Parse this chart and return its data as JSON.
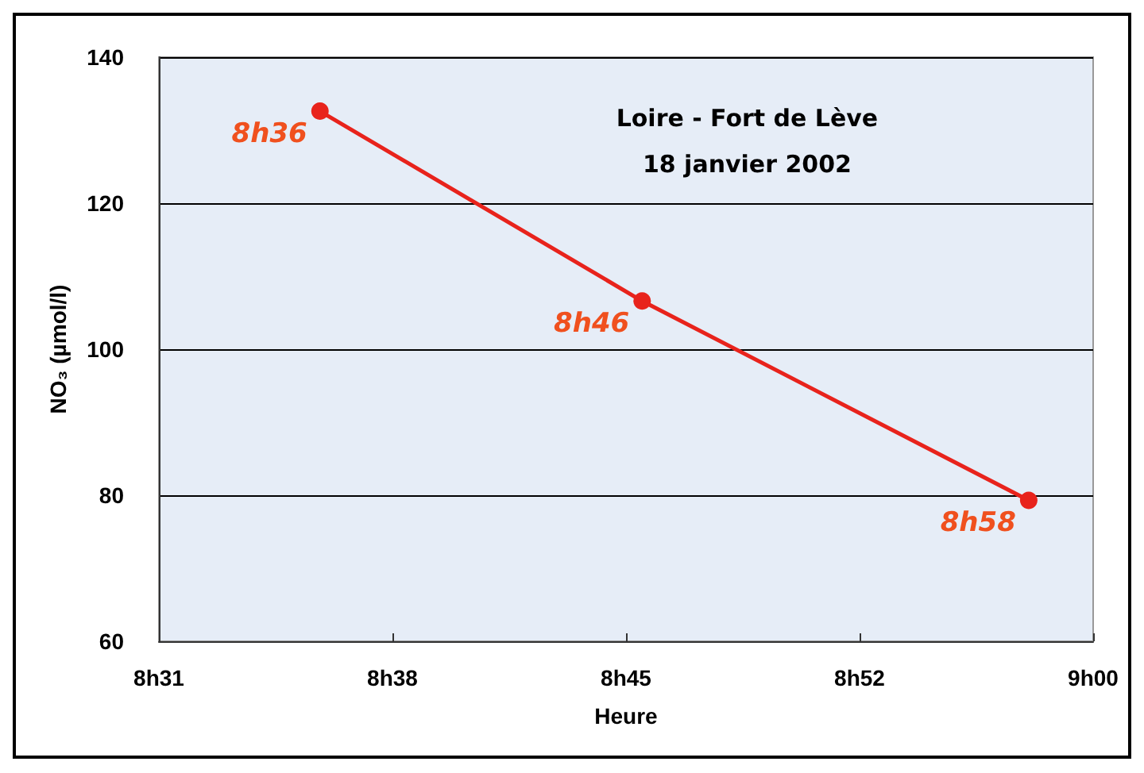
{
  "chart_data": {
    "type": "line",
    "title": "Loire - Fort de Lève",
    "subtitle": "18 janvier 2002",
    "xlabel": "Heure",
    "ylabel": "NO₃ (µmol/l)",
    "x": [
      "2002-01-18T08:36",
      "2002-01-18T08:46",
      "2002-01-18T08:58"
    ],
    "series": [
      {
        "color": "#e8231c",
        "values": [
          132.6,
          106.6,
          79.3
        ]
      }
    ],
    "annotations": [
      {
        "text": "8h36",
        "x": "2002-01-18T08:36",
        "y": 132.6
      },
      {
        "text": "8h46",
        "x": "2002-01-18T08:46",
        "y": 106.6
      },
      {
        "text": "8h58",
        "x": "2002-01-18T08:58",
        "y": 79.3
      }
    ],
    "xlim": [
      "2002-01-18T08:31",
      "2002-01-18T09:00"
    ],
    "xticks": [
      {
        "value": "2002-01-18T08:31",
        "label": "8h31"
      },
      {
        "value": "2002-01-18T08:38:15",
        "label": "8h38"
      },
      {
        "value": "2002-01-18T08:45:30",
        "label": "8h45"
      },
      {
        "value": "2002-01-18T08:52:45",
        "label": "8h52"
      },
      {
        "value": "2002-01-18T09:00",
        "label": "9h00"
      }
    ],
    "ylim": [
      60,
      140
    ],
    "yticks": [
      60,
      80,
      100,
      120,
      140
    ],
    "grid": "y",
    "marker": "circle",
    "line_style": "solid"
  }
}
